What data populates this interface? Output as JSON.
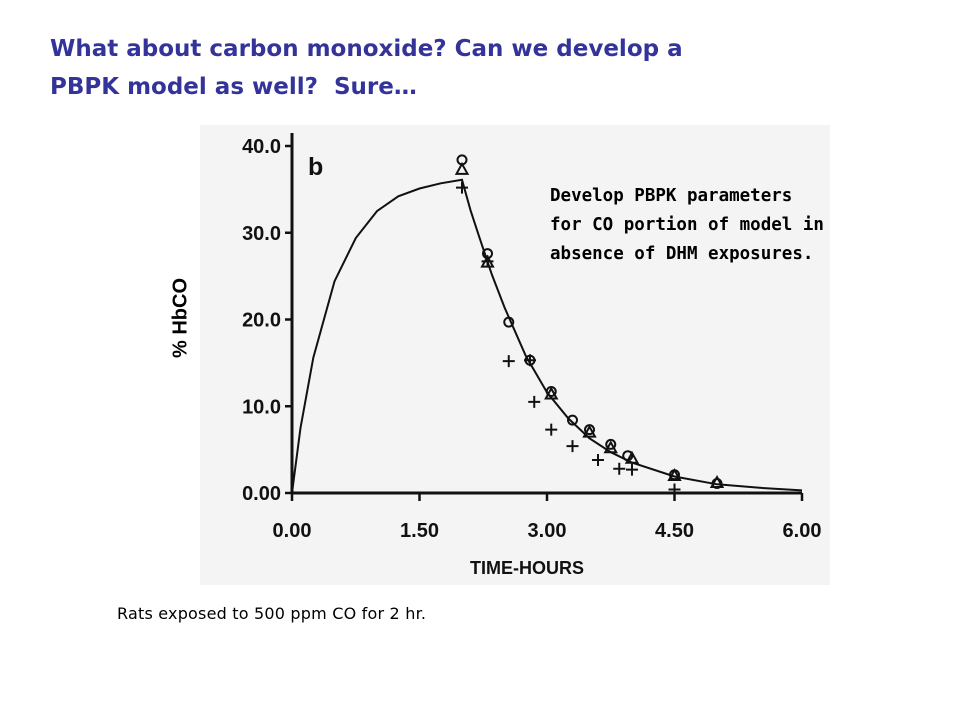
{
  "slide": {
    "title_lines": [
      "What about carbon monoxide? Can we develop a",
      "PBPK model as well?  Sure…"
    ],
    "annotation_lines": [
      "Develop PBPK parameters",
      "for CO portion of model in",
      "absence of DHM exposures."
    ],
    "caption": "Rats exposed to 500 ppm CO for 2 hr.",
    "colors": {
      "title": "#33339a",
      "text": "#000000",
      "figure_background": "#f4f4f4"
    }
  },
  "chart_data": {
    "type": "scatter",
    "panel_label": "b",
    "xlabel": "TIME-HOURS",
    "ylabel": "% HbCO",
    "xlim": [
      0,
      6
    ],
    "ylim": [
      0,
      40
    ],
    "x_ticks": [
      "0.00",
      "1.50",
      "3.00",
      "4.50",
      "6.00"
    ],
    "y_ticks": [
      "0.00",
      "10.0",
      "20.0",
      "30.0",
      "40.0"
    ],
    "x_tick_values": [
      0,
      1.5,
      3,
      4.5,
      6
    ],
    "y_tick_values": [
      0,
      10,
      20,
      30,
      40
    ],
    "series": [
      {
        "kind": "line",
        "x": [
          0,
          0.1,
          0.25,
          0.5,
          0.75,
          1.0,
          1.25,
          1.5,
          1.75,
          2.0,
          2.1,
          2.2,
          2.35,
          2.5,
          2.75,
          3.0,
          3.25,
          3.5,
          3.75,
          4.0,
          4.5,
          5.0,
          5.5,
          6.0
        ],
        "values": [
          0,
          7.5,
          15.6,
          24.4,
          29.4,
          32.5,
          34.2,
          35.1,
          35.7,
          36.1,
          32.6,
          29.6,
          25.2,
          21.4,
          15.8,
          11.6,
          8.6,
          6.3,
          4.7,
          3.5,
          1.9,
          1.0,
          0.6,
          0.3
        ]
      },
      {
        "kind": "marker",
        "marker": "circle",
        "x": [
          2.0,
          2.3,
          2.55,
          2.8,
          3.05,
          3.3,
          3.5,
          3.75,
          3.95,
          4.5,
          5.0
        ],
        "values": [
          38.4,
          27.6,
          19.7,
          15.3,
          11.7,
          8.4,
          7.3,
          5.6,
          4.3,
          2.1,
          1.1
        ]
      },
      {
        "kind": "marker",
        "marker": "triangle",
        "x": [
          2.0,
          2.3,
          3.05,
          3.5,
          3.75,
          4.0,
          4.5,
          5.0
        ],
        "values": [
          37.3,
          26.6,
          11.4,
          7.0,
          5.2,
          4.0,
          2.0,
          1.2
        ]
      },
      {
        "kind": "marker",
        "marker": "plus",
        "x": [
          2.0,
          2.3,
          2.55,
          2.8,
          2.85,
          3.05,
          3.3,
          3.6,
          3.85,
          4.0,
          4.5
        ],
        "values": [
          35.2,
          26.7,
          15.2,
          15.3,
          10.5,
          7.3,
          5.4,
          3.8,
          2.8,
          2.7,
          0.4
        ]
      }
    ]
  }
}
